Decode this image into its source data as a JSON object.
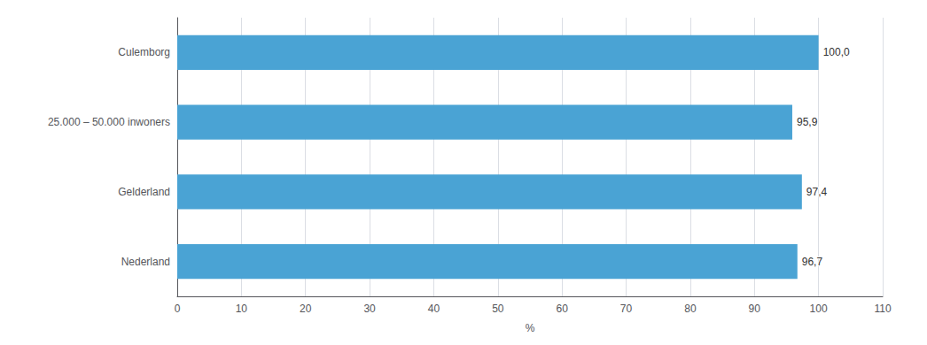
{
  "chart_data": {
    "type": "bar",
    "orientation": "horizontal",
    "categories": [
      "Nederland",
      "Gelderland",
      "25.000 – 50.000 inwoners",
      "Culemborg"
    ],
    "values": [
      96.7,
      97.4,
      95.9,
      100.0
    ],
    "value_labels": [
      "96,7",
      "97,4",
      "95,9",
      "100,0"
    ],
    "data_labels": true,
    "color": "#4aa3d4",
    "xlabel": "%",
    "xlim": [
      0,
      110
    ],
    "xticks": [
      0,
      10,
      20,
      30,
      40,
      50,
      60,
      70,
      80,
      90,
      100,
      110
    ],
    "grid": true
  }
}
